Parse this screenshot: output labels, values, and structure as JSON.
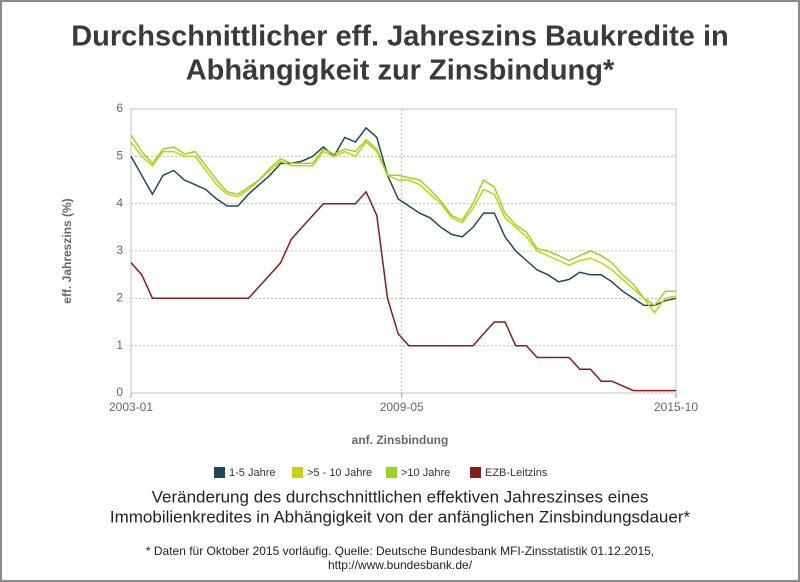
{
  "chart_data": {
    "type": "line",
    "title": [
      "Durchschnittlicher eff. Jahreszins Baukredite in",
      "Abhängigkeit zur Zinsbindung*"
    ],
    "subtitle": [
      "Veränderung des durchschnittlichen effektiven Jahreszinses eines",
      "Immobilienkredites in Abhängigkeit von der anfänglichen Zinsbindungsdauer*"
    ],
    "notes": [
      "* Daten für Oktober 2015 vorläufig. Quelle: Deutsche Bundesbank MFI-Zinsstatistik 01.12.2015,",
      "http://www.bundesbank.de/"
    ],
    "x_label": "anf. Zinsbindung",
    "y_label": "eff. Jahreszins (%)",
    "x": [
      "2003-01",
      "2003-04",
      "2003-07",
      "2003-10",
      "2004-01",
      "2004-04",
      "2004-07",
      "2004-10",
      "2005-01",
      "2005-04",
      "2005-07",
      "2005-10",
      "2006-01",
      "2006-04",
      "2006-07",
      "2006-10",
      "2007-01",
      "2007-04",
      "2007-07",
      "2007-10",
      "2008-01",
      "2008-04",
      "2008-07",
      "2008-10",
      "2009-01",
      "2009-04",
      "2009-07",
      "2009-10",
      "2010-01",
      "2010-04",
      "2010-07",
      "2010-10",
      "2011-01",
      "2011-04",
      "2011-07",
      "2011-10",
      "2012-01",
      "2012-04",
      "2012-07",
      "2012-10",
      "2013-01",
      "2013-04",
      "2013-07",
      "2013-10",
      "2014-01",
      "2014-04",
      "2014-07",
      "2014-10",
      "2015-01",
      "2015-04",
      "2015-07",
      "2015-10"
    ],
    "xlim": [
      "2003-01",
      "2015-10"
    ],
    "xticks": [
      "2003-01",
      "2009-05",
      "2015-10"
    ],
    "ylim": [
      0,
      6
    ],
    "yticks": [
      0,
      1,
      2,
      3,
      4,
      5,
      6
    ],
    "grid": true,
    "series": [
      {
        "name": "1-5 Jahre",
        "color": "#1b4a5a",
        "values": [
          5.0,
          4.6,
          4.2,
          4.6,
          4.7,
          4.5,
          4.4,
          4.3,
          4.1,
          3.95,
          3.95,
          4.2,
          4.4,
          4.6,
          4.85,
          4.85,
          4.9,
          5.0,
          5.2,
          5.0,
          5.4,
          5.3,
          5.6,
          5.4,
          4.6,
          4.1,
          3.95,
          3.8,
          3.7,
          3.5,
          3.35,
          3.3,
          3.5,
          3.8,
          3.8,
          3.3,
          3.0,
          2.8,
          2.6,
          2.5,
          2.35,
          2.4,
          2.55,
          2.5,
          2.5,
          2.35,
          2.15,
          2.0,
          1.85,
          1.85,
          1.95,
          2.0
        ]
      },
      {
        "name": ">5 - 10 Jahre",
        "color": "#c8d400",
        "values": [
          5.3,
          5.0,
          4.8,
          5.1,
          5.1,
          5.0,
          5.0,
          4.7,
          4.4,
          4.2,
          4.15,
          4.3,
          4.5,
          4.7,
          4.9,
          4.8,
          4.8,
          4.8,
          5.1,
          5.0,
          5.1,
          5.0,
          5.3,
          5.1,
          4.6,
          4.5,
          4.5,
          4.4,
          4.2,
          4.0,
          3.7,
          3.6,
          3.9,
          4.3,
          4.2,
          3.7,
          3.5,
          3.3,
          3.0,
          2.9,
          2.8,
          2.7,
          2.8,
          2.85,
          2.75,
          2.6,
          2.4,
          2.2,
          2.0,
          1.7,
          2.0,
          2.05
        ]
      },
      {
        "name": ">10 Jahre",
        "color": "#99d420",
        "values": [
          5.45,
          5.1,
          4.85,
          5.15,
          5.2,
          5.05,
          5.1,
          4.8,
          4.5,
          4.25,
          4.2,
          4.35,
          4.5,
          4.75,
          4.95,
          4.85,
          4.85,
          4.85,
          5.15,
          5.05,
          5.15,
          5.1,
          5.35,
          5.15,
          4.6,
          4.6,
          4.55,
          4.5,
          4.3,
          4.05,
          3.75,
          3.65,
          4.0,
          4.5,
          4.35,
          3.8,
          3.55,
          3.4,
          3.05,
          3.0,
          2.9,
          2.8,
          2.9,
          3.0,
          2.9,
          2.75,
          2.5,
          2.3,
          2.0,
          1.85,
          2.15,
          2.15
        ]
      },
      {
        "name": "EZB-Leitzins",
        "color": "#8b1a1a",
        "values": [
          2.75,
          2.5,
          2.0,
          2.0,
          2.0,
          2.0,
          2.0,
          2.0,
          2.0,
          2.0,
          2.0,
          2.0,
          2.25,
          2.5,
          2.75,
          3.25,
          3.5,
          3.75,
          4.0,
          4.0,
          4.0,
          4.0,
          4.25,
          3.75,
          2.0,
          1.25,
          1.0,
          1.0,
          1.0,
          1.0,
          1.0,
          1.0,
          1.0,
          1.25,
          1.5,
          1.5,
          1.0,
          1.0,
          0.75,
          0.75,
          0.75,
          0.75,
          0.5,
          0.5,
          0.25,
          0.25,
          0.15,
          0.05,
          0.05,
          0.05,
          0.05,
          0.05
        ]
      }
    ]
  }
}
